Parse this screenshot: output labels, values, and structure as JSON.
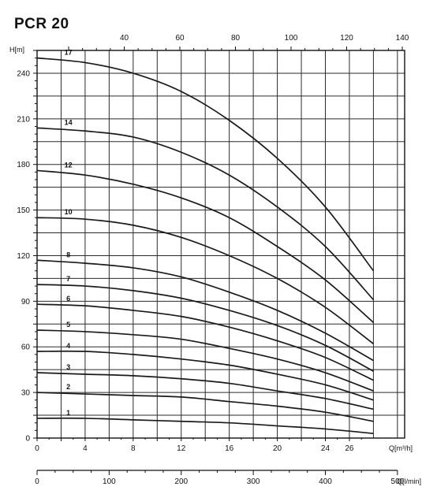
{
  "chart_data": {
    "type": "line",
    "title": "PCR 20",
    "ylabel": "H[m]",
    "xlabel": "Q[m³/h]",
    "xlabel_bottom": "Q[l/min]",
    "x_top_label": "",
    "ylim": [
      0,
      255
    ],
    "xlim": [
      0,
      30.6
    ],
    "y_ticks": [
      0,
      30,
      60,
      90,
      120,
      150,
      180,
      210,
      240
    ],
    "x_ticks": [
      0,
      4,
      8,
      12,
      16,
      20,
      24,
      26
    ],
    "x_top_ticks": [
      40,
      60,
      80,
      100,
      120,
      140
    ],
    "x_bottom_ticks": [
      0,
      100,
      200,
      300,
      400,
      500
    ],
    "grid": true,
    "series": [
      {
        "name": "17",
        "x": [
          0,
          4,
          8,
          12,
          16,
          20,
          24,
          28
        ],
        "y": [
          250,
          247,
          240,
          228,
          209,
          184,
          152,
          110
        ]
      },
      {
        "name": "14",
        "x": [
          0,
          4,
          8,
          12,
          16,
          20,
          24,
          28
        ],
        "y": [
          204,
          202,
          198,
          188,
          173,
          152,
          126,
          91
        ]
      },
      {
        "name": "12",
        "x": [
          0,
          4,
          8,
          12,
          16,
          20,
          24,
          28
        ],
        "y": [
          176,
          173,
          167,
          158,
          145,
          126,
          104,
          76
        ]
      },
      {
        "name": "10",
        "x": [
          0,
          4,
          8,
          12,
          16,
          20,
          24,
          28
        ],
        "y": [
          145,
          144,
          140,
          132,
          120,
          105,
          86,
          62
        ]
      },
      {
        "name": "8",
        "x": [
          0,
          4,
          8,
          12,
          16,
          20,
          24,
          28
        ],
        "y": [
          117,
          115,
          112,
          106,
          96,
          84,
          69,
          51
        ]
      },
      {
        "name": "7",
        "x": [
          0,
          4,
          8,
          12,
          16,
          20,
          24,
          28
        ],
        "y": [
          101,
          100,
          97,
          92,
          84,
          74,
          61,
          44
        ]
      },
      {
        "name": "6",
        "x": [
          0,
          4,
          8,
          12,
          16,
          20,
          24,
          28
        ],
        "y": [
          88,
          87,
          84,
          80,
          73,
          64,
          53,
          38
        ]
      },
      {
        "name": "5",
        "x": [
          0,
          4,
          8,
          12,
          16,
          20,
          24,
          28
        ],
        "y": [
          71,
          70,
          68,
          65,
          59,
          52,
          43,
          31
        ]
      },
      {
        "name": "4",
        "x": [
          0,
          4,
          8,
          12,
          16,
          20,
          24,
          28
        ],
        "y": [
          57,
          57,
          55,
          52,
          48,
          42,
          35,
          25
        ]
      },
      {
        "name": "3",
        "x": [
          0,
          4,
          8,
          12,
          16,
          20,
          24,
          28
        ],
        "y": [
          43,
          42,
          41,
          39,
          36,
          31,
          26,
          19
        ]
      },
      {
        "name": "2",
        "x": [
          0,
          4,
          8,
          12,
          16,
          20,
          24,
          28
        ],
        "y": [
          30,
          29,
          28,
          27,
          24,
          21,
          17,
          11
        ]
      },
      {
        "name": "1",
        "x": [
          0,
          4,
          8,
          12,
          16,
          20,
          24,
          28
        ],
        "y": [
          13,
          13,
          12,
          11,
          10,
          8,
          6,
          3
        ]
      }
    ],
    "colors": {
      "curve": "#1a1a1a",
      "grid": "#2a2a2a",
      "axis": "#111111",
      "background": "#ffffff"
    }
  }
}
